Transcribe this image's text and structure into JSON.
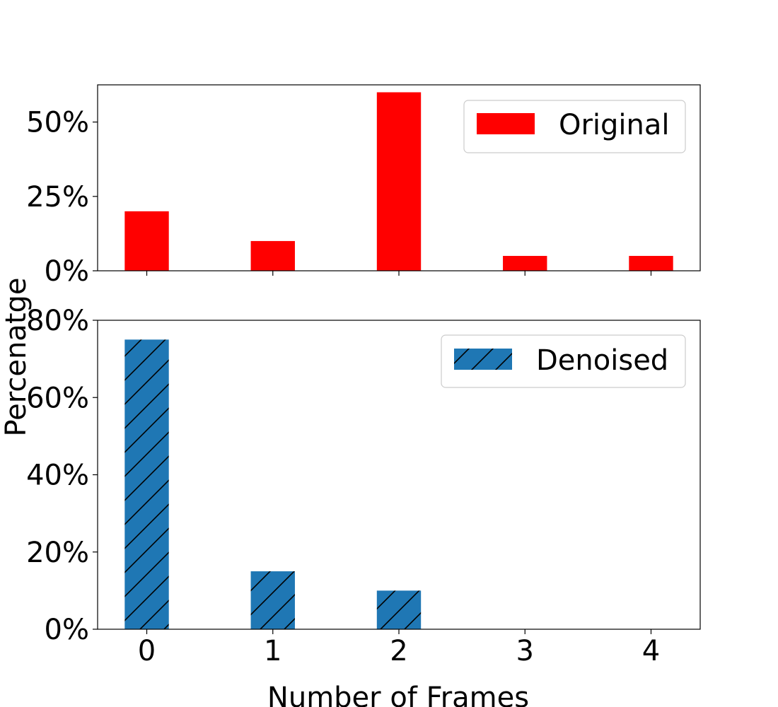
{
  "chart_data": [
    {
      "type": "bar",
      "panel": "top",
      "categories": [
        "0",
        "1",
        "2",
        "3",
        "4"
      ],
      "series": [
        {
          "name": "Original",
          "values": [
            20,
            10,
            60,
            5,
            5
          ],
          "color": "#ff0000",
          "hatch": "none"
        }
      ],
      "ylim": [
        0,
        62.5
      ],
      "yticks": [
        0,
        25,
        50
      ],
      "ytick_labels": [
        "0%",
        "25%",
        "50%"
      ],
      "legend_location": "upper right",
      "grid": false
    },
    {
      "type": "bar",
      "panel": "bottom",
      "categories": [
        "0",
        "1",
        "2",
        "3",
        "4"
      ],
      "series": [
        {
          "name": "Denoised",
          "values": [
            75,
            15,
            10,
            0,
            0
          ],
          "color": "#1f77b4",
          "hatch": "/"
        }
      ],
      "ylim": [
        0,
        80
      ],
      "yticks": [
        0,
        20,
        40,
        60,
        80
      ],
      "ytick_labels": [
        "0%",
        "20%",
        "40%",
        "60%",
        "80%"
      ],
      "legend_location": "upper right",
      "grid": false
    }
  ],
  "shared": {
    "xlabel": "Number of Frames",
    "ylabel": "Percenatge",
    "xtick_labels": [
      "0",
      "1",
      "2",
      "3",
      "4"
    ]
  }
}
